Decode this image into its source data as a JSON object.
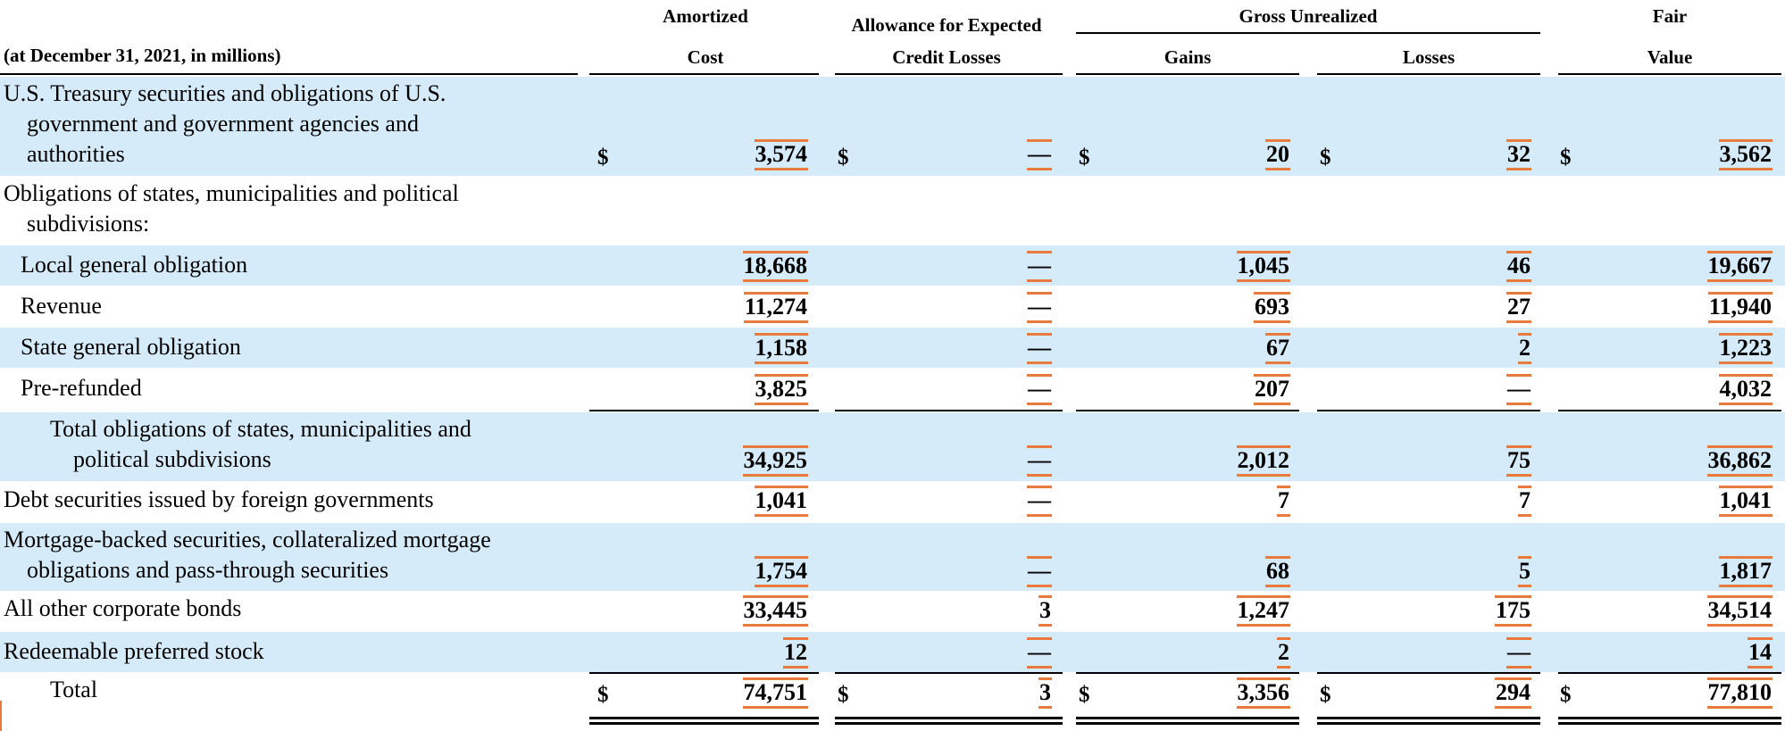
{
  "header": {
    "period_label": "(at December 31, 2021, in millions)",
    "amortized_line1": "Amortized",
    "amortized_line2": "Cost",
    "allowance_line1": "Allowance for Expected",
    "allowance_line2": "Credit Losses",
    "gross_unrealized": "Gross Unrealized",
    "gains": "Gains",
    "losses": "Losses",
    "fair_line1": "Fair",
    "fair_line2": "Value"
  },
  "rows": [
    {
      "label_lines": [
        "U.S. Treasury securities and obligations of U.S.",
        "government and government agencies and",
        "authorities"
      ],
      "dollar": "$",
      "amortized_cost": "3,574",
      "allowance": "—",
      "gains": "20",
      "losses": "32",
      "fair_value": "3,562"
    },
    {
      "label_lines": [
        "Obligations of states, municipalities and political",
        "subdivisions:"
      ]
    },
    {
      "label_lines": [
        "Local general obligation"
      ],
      "amortized_cost": "18,668",
      "allowance": "—",
      "gains": "1,045",
      "losses": "46",
      "fair_value": "19,667"
    },
    {
      "label_lines": [
        "Revenue"
      ],
      "amortized_cost": "11,274",
      "allowance": "—",
      "gains": "693",
      "losses": "27",
      "fair_value": "11,940"
    },
    {
      "label_lines": [
        "State general obligation"
      ],
      "amortized_cost": "1,158",
      "allowance": "—",
      "gains": "67",
      "losses": "2",
      "fair_value": "1,223"
    },
    {
      "label_lines": [
        "Pre-refunded"
      ],
      "amortized_cost": "3,825",
      "allowance": "—",
      "gains": "207",
      "losses": "—",
      "fair_value": "4,032"
    },
    {
      "label_lines": [
        "Total obligations of states, municipalities and",
        "political subdivisions"
      ],
      "amortized_cost": "34,925",
      "allowance": "—",
      "gains": "2,012",
      "losses": "75",
      "fair_value": "36,862"
    },
    {
      "label_lines": [
        "Debt securities issued by foreign governments"
      ],
      "amortized_cost": "1,041",
      "allowance": "—",
      "gains": "7",
      "losses": "7",
      "fair_value": "1,041"
    },
    {
      "label_lines": [
        "Mortgage-backed securities, collateralized mortgage",
        "obligations and pass-through securities"
      ],
      "amortized_cost": "1,754",
      "allowance": "—",
      "gains": "68",
      "losses": "5",
      "fair_value": "1,817"
    },
    {
      "label_lines": [
        "All other corporate bonds"
      ],
      "amortized_cost": "33,445",
      "allowance": "3",
      "gains": "1,247",
      "losses": "175",
      "fair_value": "34,514"
    },
    {
      "label_lines": [
        "Redeemable preferred stock"
      ],
      "amortized_cost": "12",
      "allowance": "—",
      "gains": "2",
      "losses": "—",
      "fair_value": "14"
    },
    {
      "label_lines": [
        "Total"
      ],
      "dollar": "$",
      "amortized_cost": "74,751",
      "allowance": "3",
      "gains": "3,356",
      "losses": "294",
      "fair_value": "77,810"
    }
  ],
  "colors": {
    "row_shade": "#d6ebf9",
    "value_highlight": "#e87a3d"
  }
}
